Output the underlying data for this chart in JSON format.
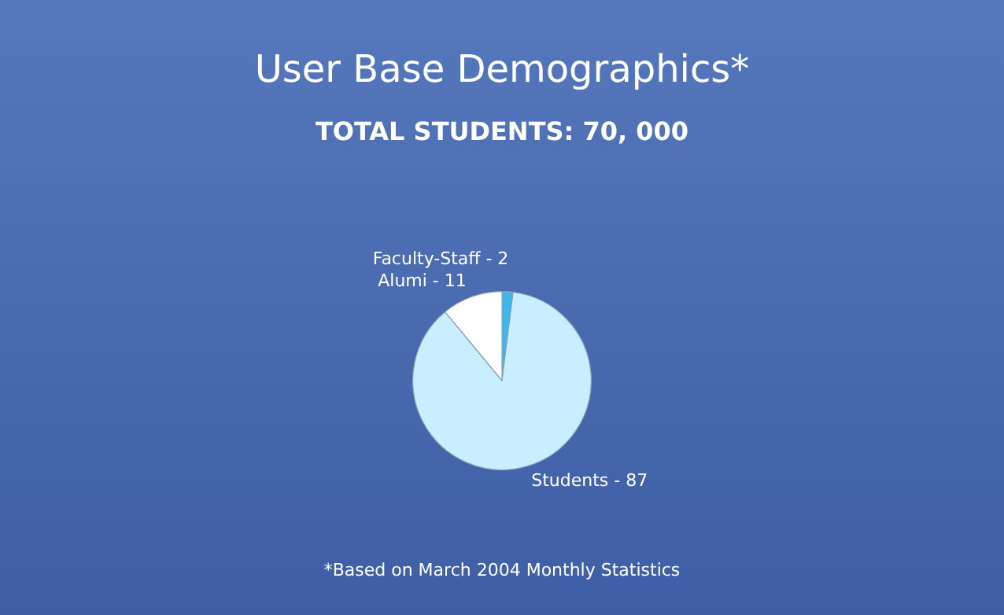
{
  "chart_data": {
    "type": "pie",
    "title": "User Base Demographics*",
    "subtitle": "TOTAL STUDENTS: 70, 000",
    "categories": [
      "Faculty-Staff - 2",
      "Students - 87",
      "Alumi - 11"
    ],
    "values": [
      2,
      87,
      11
    ],
    "colors": [
      "#3cb8ea",
      "#c8eeff",
      "#ffffff"
    ],
    "legend": false,
    "annotations": [
      "*Based on March 2004 Monthly Statistics"
    ]
  }
}
